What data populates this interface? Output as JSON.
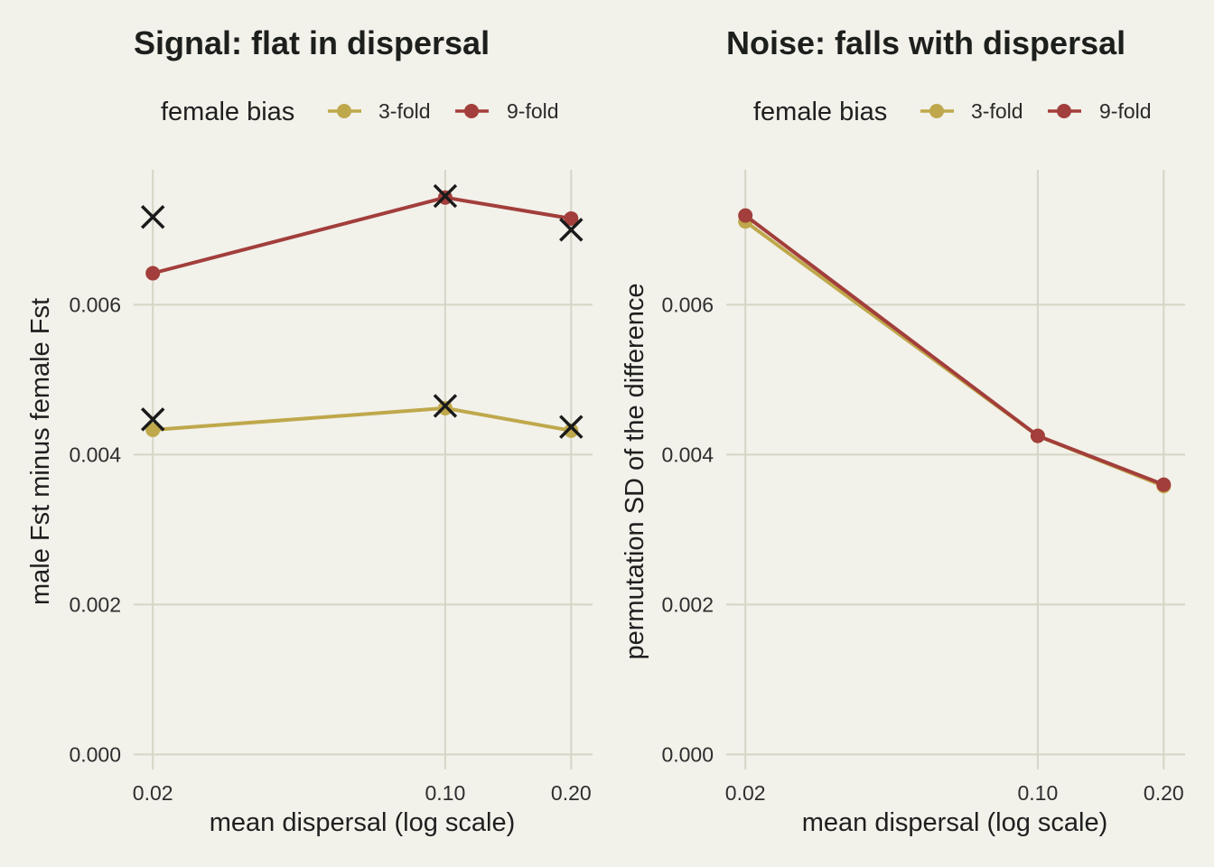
{
  "colors": {
    "background": "#f2f1ea",
    "grid": "#d6d5c6",
    "3-fold": "#bfa84b",
    "9-fold": "#a23e3b",
    "marker": "#1a1a1a"
  },
  "chart_data": [
    {
      "type": "line",
      "title": "Signal: flat in dispersal",
      "xlabel": "mean dispersal (log scale)",
      "ylabel": "male Fst minus female Fst",
      "x_scale": "log",
      "x_ticks": [
        "0.02",
        "0.10",
        "0.20"
      ],
      "y_ticks": [
        "0.000",
        "0.002",
        "0.004",
        "0.006"
      ],
      "xlim": [
        0.018,
        0.225
      ],
      "ylim": [
        -0.0002,
        0.0078
      ],
      "legend": {
        "title": "female bias",
        "position": "top",
        "entries": [
          "3-fold",
          "9-fold"
        ]
      },
      "x": [
        0.02,
        0.1,
        0.2
      ],
      "series": [
        {
          "name": "3-fold",
          "values": [
            0.00433,
            0.00462,
            0.00432
          ]
        },
        {
          "name": "9-fold",
          "values": [
            0.00642,
            0.00743,
            0.00715
          ]
        }
      ],
      "cross_markers": [
        {
          "x": 0.02,
          "y": 0.00447
        },
        {
          "x": 0.1,
          "y": 0.00465
        },
        {
          "x": 0.2,
          "y": 0.00437
        },
        {
          "x": 0.02,
          "y": 0.00717
        },
        {
          "x": 0.1,
          "y": 0.00745
        },
        {
          "x": 0.2,
          "y": 0.007
        }
      ]
    },
    {
      "type": "line",
      "title": "Noise: falls with dispersal",
      "xlabel": "mean dispersal (log scale)",
      "ylabel": "permutation SD of the difference",
      "x_scale": "log",
      "x_ticks": [
        "0.02",
        "0.10",
        "0.20"
      ],
      "y_ticks": [
        "0.000",
        "0.002",
        "0.004",
        "0.006"
      ],
      "xlim": [
        0.018,
        0.225
      ],
      "ylim": [
        -0.0002,
        0.0078
      ],
      "legend": {
        "title": "female bias",
        "position": "top",
        "entries": [
          "3-fold",
          "9-fold"
        ]
      },
      "x": [
        0.02,
        0.1,
        0.2
      ],
      "series": [
        {
          "name": "3-fold",
          "values": [
            0.00711,
            0.00425,
            0.00358
          ]
        },
        {
          "name": "9-fold",
          "values": [
            0.00719,
            0.00425,
            0.0036
          ]
        }
      ],
      "cross_markers": []
    }
  ]
}
